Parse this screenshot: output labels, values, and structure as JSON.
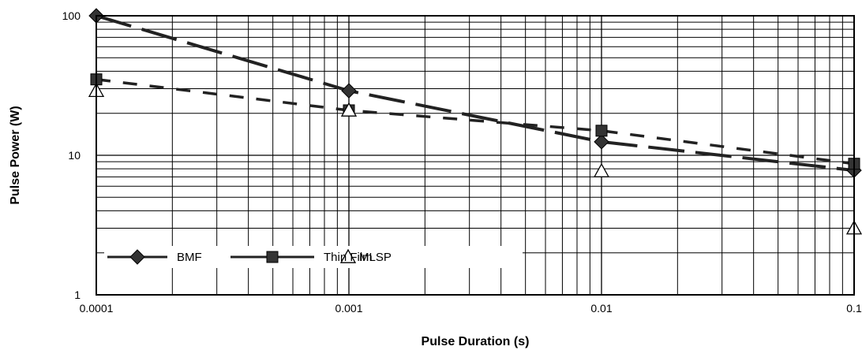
{
  "chart_data": {
    "type": "line",
    "title": "",
    "xlabel": "Pulse Duration (s)",
    "ylabel": "Pulse Power (W)",
    "x_scale": "log",
    "y_scale": "log",
    "xlim": [
      0.0001,
      0.1
    ],
    "ylim": [
      1,
      100
    ],
    "x_ticks": [
      "0.0001",
      "0.001",
      "0.01",
      "0.1"
    ],
    "y_ticks": [
      "1",
      "10",
      "100"
    ],
    "grid": true,
    "legend_position": "bottom-left inside plot",
    "series": [
      {
        "name": "BMF",
        "marker": "diamond",
        "line": "long-dash",
        "x": [
          0.0001,
          0.001,
          0.01,
          0.1
        ],
        "y": [
          100,
          29,
          12.5,
          7.8
        ]
      },
      {
        "name": "Thin Film",
        "marker": "square",
        "line": "short-dash",
        "x": [
          0.0001,
          0.001,
          0.01,
          0.1
        ],
        "y": [
          35,
          21,
          15,
          8.7
        ]
      },
      {
        "name": "MLSP",
        "marker": "open-triangle",
        "line": "none",
        "x": [
          0.0001,
          0.001,
          0.01,
          0.1
        ],
        "y": [
          29,
          21,
          7.7,
          3
        ]
      }
    ]
  }
}
